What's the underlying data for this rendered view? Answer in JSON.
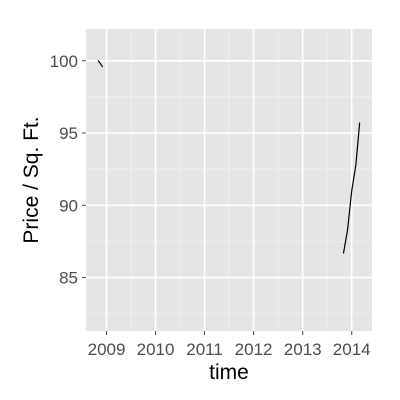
{
  "chart_data": {
    "type": "line",
    "xlabel": "time",
    "ylabel": "Price / Sq. Ft.",
    "x_ticks": [
      "2009",
      "2010",
      "2011",
      "2012",
      "2013",
      "2014"
    ],
    "y_ticks": [
      85,
      90,
      95,
      100
    ],
    "xlim": [
      "2008-08-01",
      "2014-06-01"
    ],
    "ylim": [
      81.3,
      102.2
    ],
    "grid": true,
    "background_color": "#e5e5e5",
    "grid_color": "#ffffff",
    "line_color": "#000000",
    "series": [
      {
        "segments": [
          [
            {
              "x": "2008-11-01",
              "y": 100.0
            },
            {
              "x": "2008-12-01",
              "y": 99.6
            }
          ],
          [
            {
              "x": "2013-11-01",
              "y": 86.7
            },
            {
              "x": "2013-12-01",
              "y": 88.3
            },
            {
              "x": "2014-01-01",
              "y": 91.0
            },
            {
              "x": "2014-02-01",
              "y": 92.8
            },
            {
              "x": "2014-03-01",
              "y": 95.7
            }
          ]
        ]
      }
    ]
  }
}
